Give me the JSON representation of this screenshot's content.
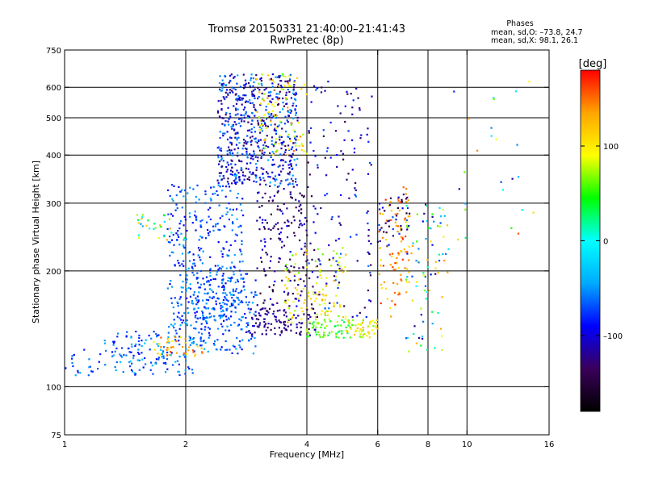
{
  "chart_data": {
    "type": "scatter",
    "title": "Tromsø 20150331 21:40:00–21:41:43",
    "subtitle": "RwPretec (8p)",
    "xlabel": "Frequency [MHz]",
    "ylabel": "Stationary phase Virtual Height [km]",
    "x_scale": "log",
    "y_scale": "log",
    "xlim": [
      1,
      16
    ],
    "ylim": [
      75,
      750
    ],
    "x_ticks": [
      1,
      2,
      4,
      6,
      8,
      10,
      16
    ],
    "x_tick_labels": [
      "1",
      "2",
      "4",
      "6",
      "8",
      "10",
      "16"
    ],
    "x_gridlines": [
      2,
      4,
      6,
      8,
      10
    ],
    "y_ticks": [
      75,
      100,
      200,
      300,
      400,
      500,
      600,
      750
    ],
    "y_tick_labels": [
      "75",
      "100",
      "200",
      "300",
      "400",
      "500",
      "600",
      "750"
    ],
    "y_gridlines": [
      100,
      200,
      300,
      400,
      500,
      600
    ],
    "grid": true,
    "stats": {
      "heading": "Phases",
      "line_o": "mean, sd,O: –73.8, 24.7",
      "line_x": "mean, sd,X:  98.1, 26.1"
    },
    "colorbar": {
      "label": "[deg]",
      "range": [
        -180,
        180
      ],
      "ticks": [
        100,
        0,
        -100
      ],
      "tick_labels": [
        "100",
        "0",
        "–100"
      ],
      "colormap": "rainbow-black-to-red",
      "stops": [
        "#000000",
        "#3a005a",
        "#0000ff",
        "#00aaff",
        "#00ffff",
        "#00ff00",
        "#ffff00",
        "#ffa500",
        "#ff0000"
      ]
    },
    "clusters": [
      {
        "f": [
          2.4,
          3.8
        ],
        "h": [
          330,
          650
        ],
        "phase": [
          -140,
          -40
        ],
        "n": 620
      },
      {
        "f": [
          3.0,
          4.0
        ],
        "h": [
          400,
          650
        ],
        "phase": [
          60,
          150
        ],
        "n": 90
      },
      {
        "f": [
          1.8,
          2.8
        ],
        "h": [
          140,
          340
        ],
        "phase": [
          -100,
          -40
        ],
        "n": 360
      },
      {
        "f": [
          2.0,
          3.0
        ],
        "h": [
          122,
          200
        ],
        "phase": [
          -90,
          -40
        ],
        "n": 220
      },
      {
        "f": [
          1.25,
          2.1
        ],
        "h": [
          107,
          140
        ],
        "phase": [
          -90,
          -30
        ],
        "n": 140
      },
      {
        "f": [
          1.6,
          2.2
        ],
        "h": [
          120,
          135
        ],
        "phase": [
          90,
          160
        ],
        "n": 40
      },
      {
        "f": [
          2.8,
          4.2
        ],
        "h": [
          136,
          160
        ],
        "phase": [
          -140,
          -100
        ],
        "n": 110
      },
      {
        "f": [
          3.0,
          4.0
        ],
        "h": [
          160,
          330
        ],
        "phase": [
          -160,
          -90
        ],
        "n": 160
      },
      {
        "f": [
          3.5,
          5.0
        ],
        "h": [
          145,
          230
        ],
        "phase": [
          60,
          130
        ],
        "n": 120
      },
      {
        "f": [
          4.0,
          5.2
        ],
        "h": [
          134,
          150
        ],
        "phase": [
          20,
          80
        ],
        "n": 60
      },
      {
        "f": [
          4.0,
          5.8
        ],
        "h": [
          150,
          650
        ],
        "phase": [
          -150,
          -60
        ],
        "n": 150
      },
      {
        "f": [
          5.0,
          6.0
        ],
        "h": [
          134,
          150
        ],
        "phase": [
          60,
          130
        ],
        "n": 50
      },
      {
        "f": [
          6.0,
          7.2
        ],
        "h": [
          150,
          330
        ],
        "phase": [
          100,
          170
        ],
        "n": 90
      },
      {
        "f": [
          6.0,
          7.2
        ],
        "h": [
          230,
          320
        ],
        "phase": [
          -160,
          -60
        ],
        "n": 40
      },
      {
        "f": [
          7.0,
          9.0
        ],
        "h": [
          120,
          300
        ],
        "phase": [
          -130,
          140
        ],
        "n": 90
      },
      {
        "f": [
          9.0,
          15.0
        ],
        "h": [
          240,
          650
        ],
        "phase": [
          -120,
          170
        ],
        "n": 25
      },
      {
        "f": [
          1.0,
          1.25
        ],
        "h": [
          105,
          125
        ],
        "phase": [
          -90,
          -40
        ],
        "n": 20
      },
      {
        "f": [
          1.5,
          2.0
        ],
        "h": [
          240,
          280
        ],
        "phase": [
          -80,
          140
        ],
        "n": 30
      }
    ]
  }
}
